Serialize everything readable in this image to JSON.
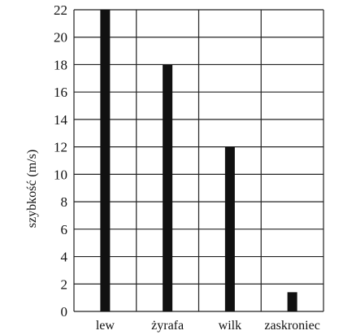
{
  "chart_data": {
    "type": "bar",
    "title": "",
    "xlabel": "",
    "ylabel": "szybkość (m/s)",
    "categories": [
      "lew",
      "żyrafa",
      "wilk",
      "zaskroniec"
    ],
    "values": [
      22,
      18,
      12,
      1.4
    ],
    "ylim": [
      0,
      22
    ],
    "yticks": [
      0,
      2,
      4,
      6,
      8,
      10,
      12,
      14,
      16,
      18,
      20,
      22
    ],
    "grid": true,
    "bar_color": "#111111"
  }
}
